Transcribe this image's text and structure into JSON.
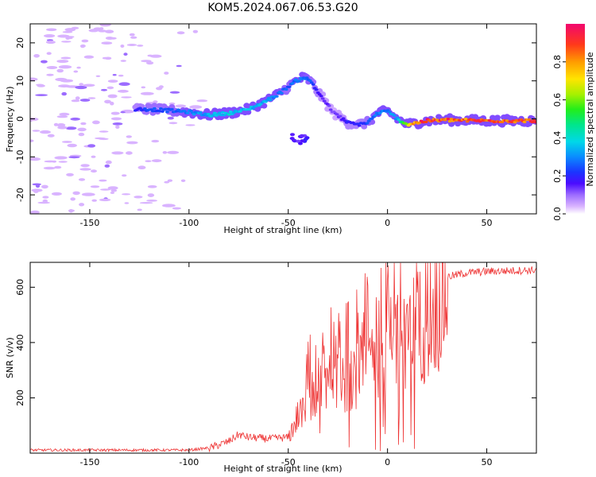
{
  "title": "KOM5.2024.067.06.53.G20",
  "chart_data": [
    {
      "type": "heatmap",
      "xlabel": "Height of straight line (km)",
      "ylabel": "Frequency (Hz)",
      "xlim": [
        -180,
        75
      ],
      "ylim": [
        -25,
        25
      ],
      "x_ticks": [
        -150,
        -100,
        -50,
        0,
        50
      ],
      "y_ticks": [
        -20,
        -10,
        0,
        10,
        20
      ],
      "colorbar": {
        "label": "Normalized spectral amplitude",
        "range": [
          0,
          1
        ],
        "ticks": [
          "0.0",
          "0.2",
          "0.4",
          "0.6",
          "0.8"
        ],
        "tick_values": [
          0,
          0.2,
          0.4,
          0.6,
          0.8
        ]
      },
      "ridge": {
        "x": [
          -127,
          -120,
          -110,
          -100,
          -90,
          -80,
          -70,
          -62,
          -55,
          -50,
          -46,
          -42,
          -38,
          -35,
          -32,
          -30,
          -27,
          -24,
          -20,
          -15,
          -10,
          -5,
          0,
          5,
          10,
          15,
          20,
          30,
          40,
          50,
          60,
          75
        ],
        "frequency": [
          2.5,
          2.5,
          2.2,
          1.8,
          1.0,
          1.5,
          2.5,
          4.5,
          6.5,
          8.5,
          10.0,
          11.0,
          9.5,
          7.0,
          5.0,
          3.5,
          1.5,
          0.5,
          -1.0,
          -1.5,
          -1.0,
          1.5,
          2.0,
          0.0,
          -1.5,
          -1.0,
          -0.5,
          -0.3,
          -0.4,
          -0.5,
          -0.5,
          -0.5
        ],
        "amplitude": [
          0.2,
          0.25,
          0.25,
          0.3,
          0.35,
          0.4,
          0.35,
          0.35,
          0.3,
          0.25,
          0.3,
          0.3,
          0.25,
          0.2,
          0.15,
          0.15,
          0.12,
          0.15,
          0.2,
          0.2,
          0.25,
          0.3,
          0.3,
          0.35,
          0.7,
          0.9,
          0.95,
          0.92,
          0.9,
          0.95,
          0.92,
          0.9
        ]
      }
    },
    {
      "type": "line",
      "xlabel": "Height of straight line (km)",
      "ylabel": "SNR (v/v)",
      "xlim": [
        -180,
        75
      ],
      "ylim": [
        0,
        690
      ],
      "x_ticks": [
        -150,
        -100,
        -50,
        0,
        50
      ],
      "y_ticks": [
        200,
        400,
        600
      ],
      "color": "#ee3333",
      "envelope": {
        "x": [
          -180,
          -100,
          -90,
          -80,
          -75,
          -70,
          -60,
          -50,
          -45,
          -40,
          -35,
          -30,
          -25,
          -20,
          -15,
          -10,
          -5,
          0,
          5,
          10,
          15,
          20,
          25,
          30,
          40,
          50,
          60,
          75
        ],
        "snr": [
          12,
          12,
          20,
          45,
          70,
          60,
          55,
          60,
          150,
          230,
          260,
          280,
          300,
          300,
          340,
          380,
          420,
          450,
          470,
          480,
          500,
          540,
          600,
          640,
          655,
          660,
          662,
          665
        ]
      }
    }
  ]
}
